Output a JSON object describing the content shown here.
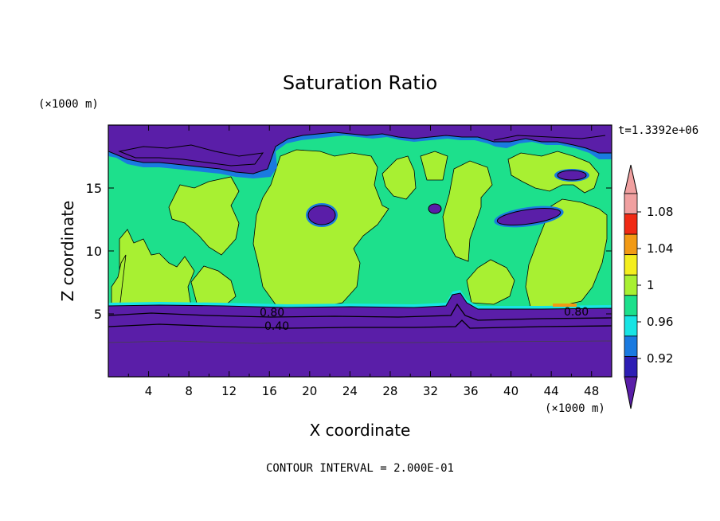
{
  "chart_data": {
    "type": "heatmap",
    "title": "Saturation Ratio",
    "xlabel": "X coordinate",
    "ylabel": "Z coordinate",
    "x_unit": "(×1000 m)",
    "y_unit": "(×1000 m)",
    "time_label": "t=1.3392e+06",
    "footer": "CONTOUR INTERVAL = 2.000E-01",
    "xlim": [
      0,
      50
    ],
    "ylim": [
      0,
      20
    ],
    "x_ticks": [
      "4",
      "8",
      "12",
      "16",
      "20",
      "24",
      "28",
      "32",
      "36",
      "40",
      "44",
      "48"
    ],
    "y_ticks": [
      "5",
      "10",
      "15"
    ],
    "contour_labels": [
      "0.80",
      "0.40",
      "0.80"
    ],
    "colorbar": {
      "levels": [
        0.92,
        0.96,
        1.0,
        1.04,
        1.08
      ],
      "labels": [
        "0.92",
        "0.96",
        "1",
        "1.04",
        "1.08"
      ],
      "colors": [
        "#5a1ea8",
        "#2d1eb4",
        "#1a7ae0",
        "#18e4e4",
        "#1de08c",
        "#a8f032",
        "#f4ee1e",
        "#f29a14",
        "#f02a14",
        "#f0a0a0",
        "#7a1aa8"
      ]
    },
    "regions": {
      "dry_lower_layer_top": 5.6,
      "moist_layer_color": "#1de08c",
      "supersaturated_patch_color": "#a8f032"
    }
  }
}
